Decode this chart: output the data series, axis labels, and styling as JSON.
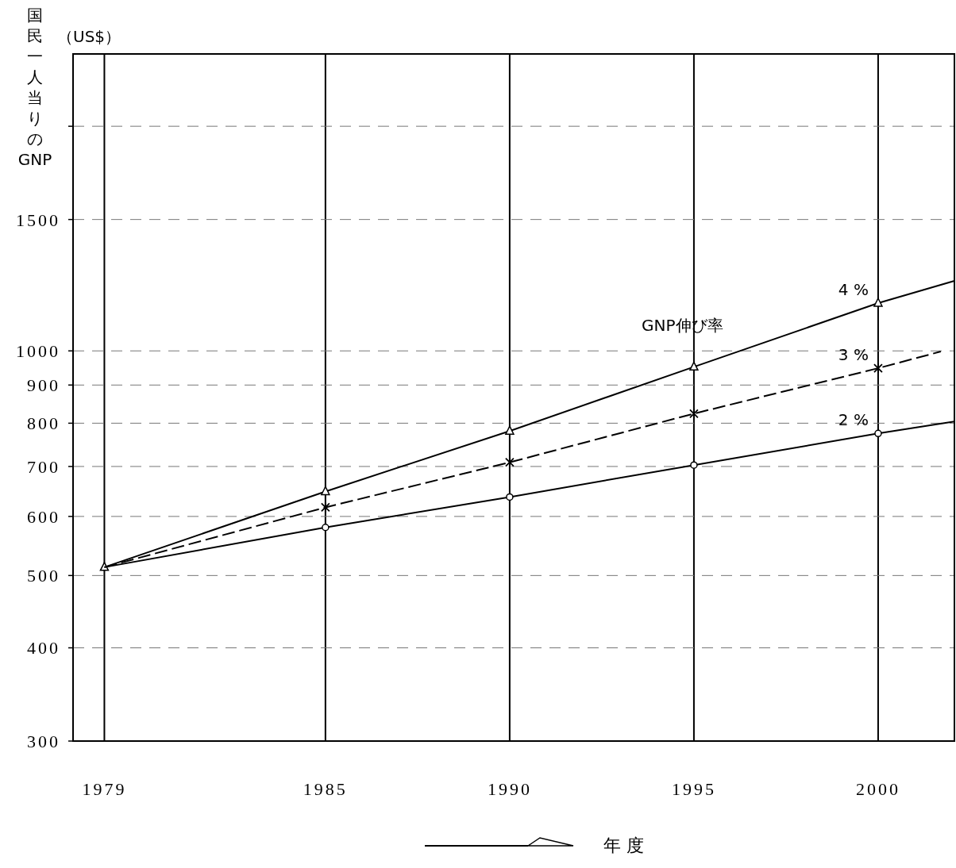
{
  "chart_data": {
    "type": "line",
    "ylabel": "国民一人当りのGNP",
    "xlabel": "年 度",
    "log": "y",
    "annotations": [
      "（US$）",
      "GNP伸び率"
    ],
    "xlim": [
      1978.15,
      2002.07
    ],
    "xticks": [
      1979,
      1985,
      1990,
      1995,
      2000
    ],
    "ylim": [
      300,
      2500
    ],
    "yticks": [
      300,
      400,
      500,
      600,
      700,
      800,
      900,
      1000,
      1500,
      {
        "value": 2000,
        "label": null
      }
    ],
    "grid": true,
    "legend": false,
    "series": [
      {
        "name": "4 %",
        "color": "#000000",
        "marker": "triangle",
        "line_style": "solid",
        "x": [
          1979,
          1985,
          1990,
          1995,
          2000,
          2002.07
        ],
        "values": [
          513,
          648,
          781,
          952,
          1159,
          1241
        ]
      },
      {
        "name": "3 %",
        "color": "#000000",
        "marker": "cross",
        "line_style": "dashed",
        "x": [
          1979,
          1985,
          1990,
          1995,
          2000,
          2001.7
        ],
        "values": [
          513,
          617,
          709,
          824,
          948,
          998
        ]
      },
      {
        "name": "2 %",
        "color": "#000000",
        "marker": "circle",
        "line_style": "solid",
        "x": [
          1979,
          1985,
          1990,
          1995,
          2000,
          2002.07
        ],
        "values": [
          513,
          580,
          637,
          703,
          775,
          804
        ]
      }
    ]
  }
}
